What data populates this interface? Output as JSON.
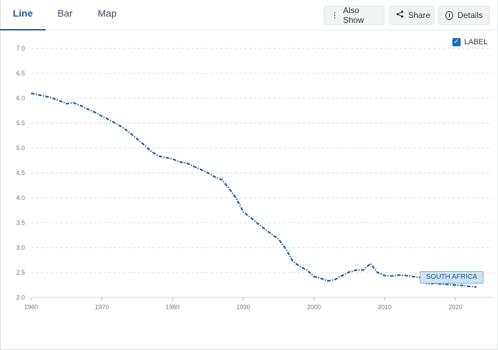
{
  "tabs": [
    {
      "label": "Line",
      "active": true
    },
    {
      "label": "Bar",
      "active": false
    },
    {
      "label": "Map",
      "active": false
    }
  ],
  "toolbar": {
    "also_show": "Also Show",
    "share": "Share",
    "details": "Details"
  },
  "label_toggle": {
    "label": "LABEL",
    "checked": true
  },
  "colors": {
    "series": "#1a5b96",
    "accent": "#1a6fb5",
    "grid": "#dcdcdc"
  },
  "chart_data": {
    "type": "line",
    "title": "",
    "xlabel": "",
    "ylabel": "",
    "xlim": [
      1960,
      2023
    ],
    "ylim": [
      2.0,
      7.0
    ],
    "x_ticks": [
      1960,
      1970,
      1980,
      1990,
      2000,
      2010,
      2020
    ],
    "y_ticks": [
      "2.0",
      "2.5",
      "3.0",
      "3.5",
      "4.0",
      "4.5",
      "5.0",
      "5.5",
      "6.0",
      "6.5",
      "7.0"
    ],
    "grid": true,
    "series": [
      {
        "name": "SOUTH AFRICA",
        "line_style": "dash-dot",
        "x": [
          1960,
          1961,
          1962,
          1963,
          1964,
          1965,
          1966,
          1967,
          1968,
          1969,
          1970,
          1971,
          1972,
          1973,
          1974,
          1975,
          1976,
          1977,
          1978,
          1979,
          1980,
          1981,
          1982,
          1983,
          1984,
          1985,
          1986,
          1987,
          1988,
          1989,
          1990,
          1991,
          1992,
          1993,
          1994,
          1995,
          1996,
          1997,
          1998,
          1999,
          2000,
          2001,
          2002,
          2003,
          2004,
          2005,
          2006,
          2007,
          2008,
          2009,
          2010,
          2011,
          2012,
          2013,
          2014,
          2015,
          2016,
          2017,
          2018,
          2019,
          2020,
          2021,
          2022,
          2023
        ],
        "values": [
          6.1,
          6.07,
          6.04,
          6.0,
          5.95,
          5.89,
          5.91,
          5.85,
          5.78,
          5.72,
          5.64,
          5.57,
          5.49,
          5.41,
          5.3,
          5.18,
          5.06,
          4.93,
          4.84,
          4.81,
          4.78,
          4.72,
          4.7,
          4.63,
          4.57,
          4.5,
          4.42,
          4.36,
          4.19,
          3.99,
          3.72,
          3.61,
          3.49,
          3.38,
          3.27,
          3.17,
          2.98,
          2.73,
          2.62,
          2.55,
          2.42,
          2.38,
          2.33,
          2.36,
          2.44,
          2.51,
          2.55,
          2.55,
          2.68,
          2.5,
          2.44,
          2.43,
          2.45,
          2.44,
          2.42,
          2.4,
          2.27,
          2.28,
          2.27,
          2.26,
          2.25,
          2.24,
          2.22,
          2.21
        ]
      }
    ]
  }
}
